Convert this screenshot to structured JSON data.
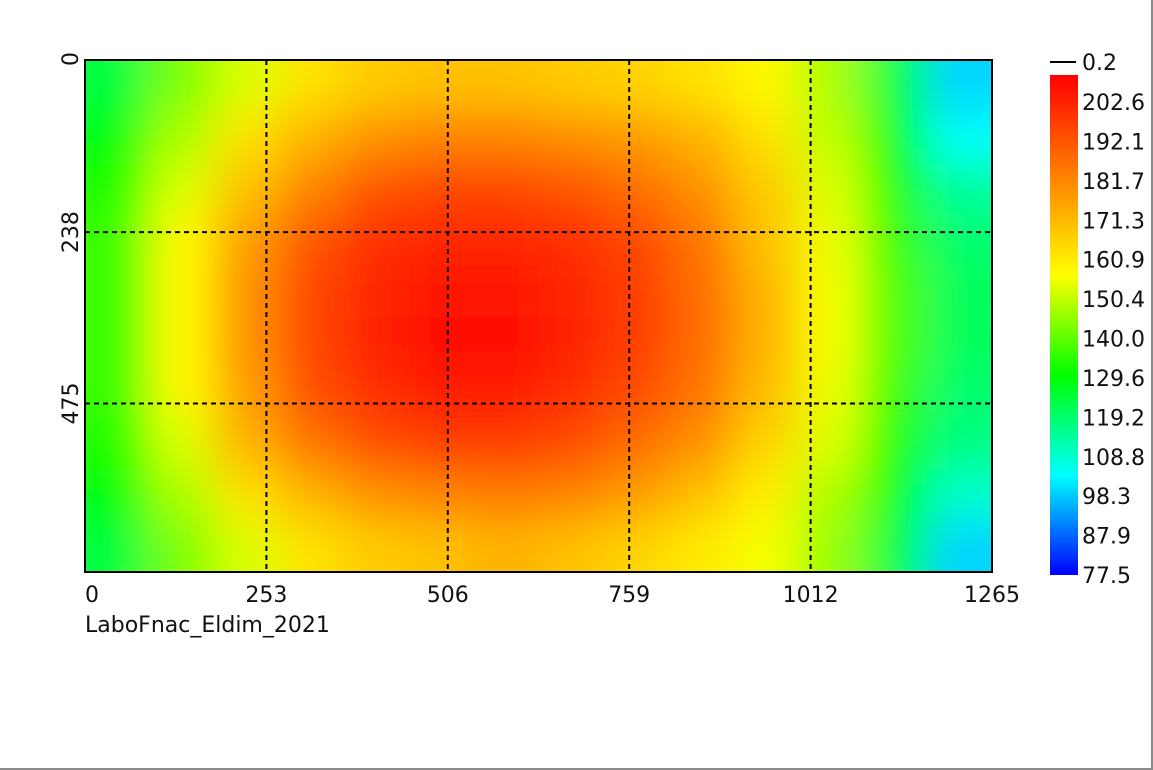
{
  "chart_data": {
    "type": "heatmap",
    "title": "",
    "caption": "LaboFnac_Eldim_2021",
    "xlim": [
      0,
      1265
    ],
    "ylim": [
      0,
      708
    ],
    "x_ticks": [
      "0",
      "253",
      "506",
      "759",
      "1012",
      "1265"
    ],
    "y_ticks": [
      "0",
      "238",
      "475"
    ],
    "grid": true,
    "colorbar": {
      "position": "right",
      "top_label": "0.2",
      "labels": [
        "202.6",
        "192.1",
        "181.7",
        "171.3",
        "160.9",
        "150.4",
        "140.0",
        "129.6",
        "119.2",
        "108.8",
        "98.3",
        "87.9",
        "77.5"
      ],
      "range": [
        77.5,
        213
      ],
      "colormap": [
        "#0000ff",
        "#00ffff",
        "#00ff00",
        "#ffff00",
        "#ff8000",
        "#ff0000"
      ]
    },
    "values": [
      [
        125,
        145,
        155,
        165,
        170,
        172,
        172,
        170,
        168,
        165,
        160,
        150,
        125,
        100
      ],
      [
        130,
        150,
        165,
        175,
        182,
        185,
        185,
        183,
        180,
        175,
        165,
        152,
        130,
        105
      ],
      [
        135,
        155,
        172,
        185,
        195,
        198,
        198,
        195,
        190,
        182,
        170,
        155,
        135,
        115
      ],
      [
        138,
        160,
        180,
        195,
        203,
        205,
        205,
        203,
        198,
        188,
        172,
        157,
        138,
        120
      ],
      [
        138,
        160,
        182,
        198,
        205,
        208,
        208,
        205,
        200,
        190,
        175,
        158,
        140,
        122
      ],
      [
        138,
        160,
        182,
        198,
        206,
        210,
        210,
        206,
        200,
        190,
        175,
        158,
        140,
        122
      ],
      [
        138,
        160,
        180,
        196,
        203,
        207,
        207,
        203,
        197,
        188,
        173,
        157,
        138,
        120
      ],
      [
        135,
        155,
        175,
        188,
        196,
        200,
        200,
        197,
        190,
        182,
        168,
        155,
        135,
        118
      ],
      [
        130,
        150,
        165,
        175,
        182,
        185,
        187,
        185,
        180,
        172,
        162,
        150,
        130,
        110
      ],
      [
        125,
        145,
        155,
        165,
        170,
        172,
        175,
        172,
        168,
        163,
        158,
        148,
        125,
        100
      ]
    ]
  }
}
